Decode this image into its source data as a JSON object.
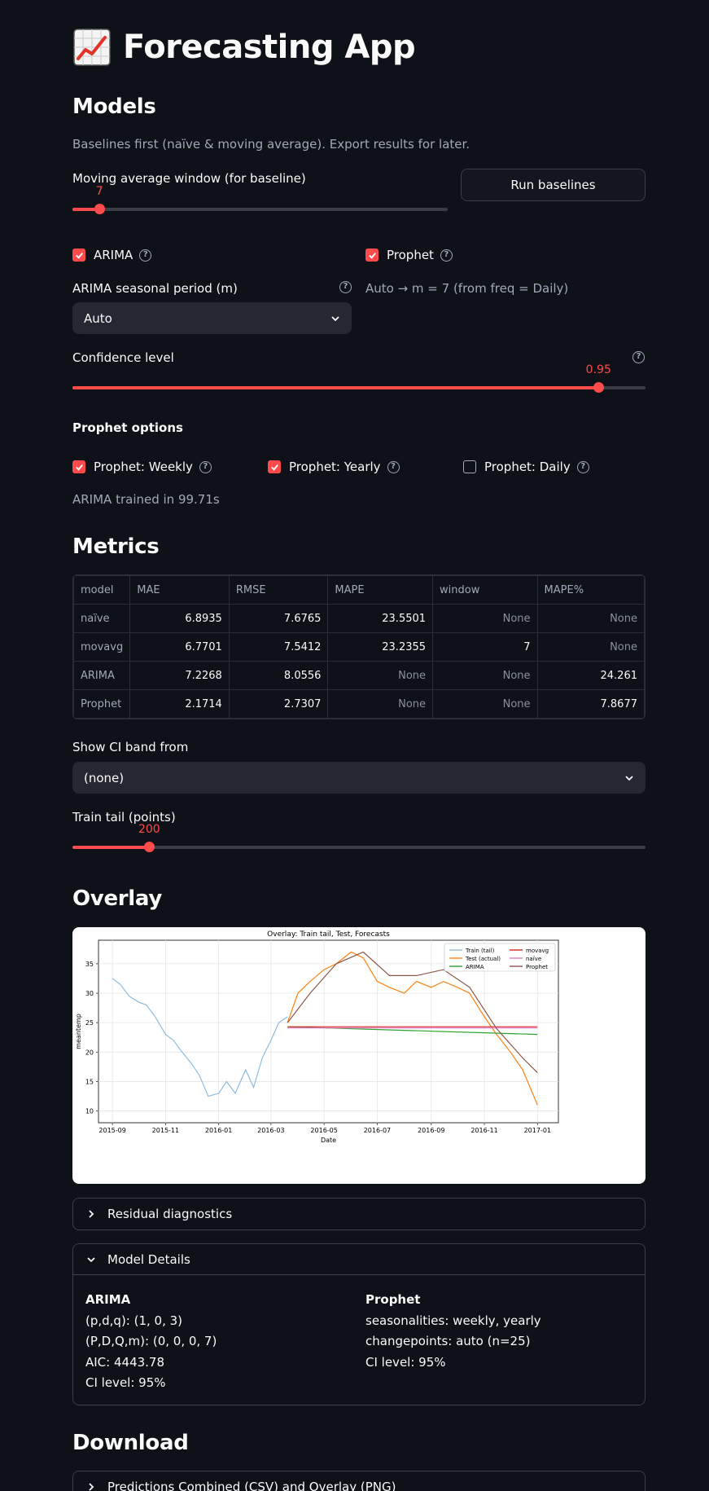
{
  "app": {
    "title": "Forecasting App",
    "title_icon": "chart-increasing-emoji"
  },
  "models": {
    "heading": "Models",
    "caption": "Baselines first (naïve & moving average). Export results for later.",
    "ma_window_label": "Moving average window (for baseline)",
    "ma_window_value": "7",
    "ma_window_fraction": 0.072,
    "run_baselines_label": "Run baselines",
    "arima_label": "ARIMA",
    "arima_checked": true,
    "prophet_label": "Prophet",
    "prophet_checked": true,
    "seasonal_label": "ARIMA seasonal period (m)",
    "seasonal_value": "Auto",
    "auto_note": "Auto → m = 7 (from freq = Daily)",
    "confidence_label": "Confidence level",
    "confidence_value": "0.95",
    "confidence_fraction": 0.918,
    "prophet_options_label": "Prophet options",
    "weekly_label": "Prophet: Weekly",
    "yearly_label": "Prophet: Yearly",
    "daily_label": "Prophet: Daily",
    "arima_trained": "ARIMA trained in 99.71s"
  },
  "metrics": {
    "heading": "Metrics",
    "columns": [
      "model",
      "MAE",
      "RMSE",
      "MAPE",
      "window",
      "MAPE%"
    ],
    "rows": [
      [
        "naïve",
        "6.8935",
        "7.6765",
        "23.5501",
        "None",
        "None"
      ],
      [
        "movavg",
        "6.7701",
        "7.5412",
        "23.2355",
        "7",
        "None"
      ],
      [
        "ARIMA",
        "7.2268",
        "8.0556",
        "None",
        "None",
        "24.261"
      ],
      [
        "Prophet",
        "2.1714",
        "2.7307",
        "None",
        "None",
        "7.8677"
      ]
    ],
    "ci_label": "Show CI band from",
    "ci_value": "(none)",
    "tail_label": "Train tail (points)",
    "tail_value": "200",
    "tail_fraction": 0.134
  },
  "overlay": {
    "heading": "Overlay"
  },
  "chart_data": {
    "type": "line",
    "title": "Overlay: Train tail, Test, Forecasts",
    "xlabel": "Date",
    "ylabel": "meantemp",
    "x_ticks": [
      "2015-09",
      "2015-11",
      "2016-01",
      "2016-03",
      "2016-05",
      "2016-07",
      "2016-09",
      "2016-11",
      "2017-01"
    ],
    "y_ticks": [
      "10",
      "15",
      "20",
      "25",
      "30",
      "35"
    ],
    "ylim": [
      8,
      39
    ],
    "xlim": [
      "2015-08-16",
      "2017-01-25"
    ],
    "legend_position": "top-right",
    "grid": true,
    "series": [
      {
        "name": "Train (tail)",
        "color": "#8fbbdf",
        "x": [
          "2015-09-01",
          "2015-09-10",
          "2015-09-20",
          "2015-10-01",
          "2015-10-10",
          "2015-10-20",
          "2015-11-01",
          "2015-11-10",
          "2015-11-20",
          "2015-12-01",
          "2015-12-10",
          "2015-12-20",
          "2016-01-01",
          "2016-01-10",
          "2016-01-20",
          "2016-02-01",
          "2016-02-10",
          "2016-02-20",
          "2016-03-01",
          "2016-03-10",
          "2016-03-20"
        ],
        "values": [
          32.5,
          31.5,
          29.5,
          28.5,
          28,
          26,
          23,
          22,
          20,
          18,
          16,
          12.5,
          13,
          15,
          13,
          17,
          14,
          19,
          22,
          25,
          26
        ]
      },
      {
        "name": "Test (actual)",
        "color": "#ff7f0e",
        "x": [
          "2016-03-20",
          "2016-04-01",
          "2016-04-15",
          "2016-05-01",
          "2016-05-15",
          "2016-06-01",
          "2016-06-15",
          "2016-07-01",
          "2016-07-15",
          "2016-08-01",
          "2016-08-15",
          "2016-09-01",
          "2016-09-15",
          "2016-10-01",
          "2016-10-15",
          "2016-11-01",
          "2016-11-15",
          "2016-12-01",
          "2016-12-15",
          "2017-01-01"
        ],
        "values": [
          25,
          30,
          32,
          34,
          35,
          37,
          36,
          32,
          31,
          30,
          32,
          31,
          32,
          31,
          30,
          26,
          23,
          20,
          17,
          11
        ]
      },
      {
        "name": "ARIMA",
        "color": "#2ca02c",
        "x": [
          "2016-03-20",
          "2017-01-01"
        ],
        "values": [
          24.3,
          23.0
        ]
      },
      {
        "name": "movavg",
        "color": "#d62728",
        "x": [
          "2016-03-20",
          "2017-01-01"
        ],
        "values": [
          24.3,
          24.3
        ]
      },
      {
        "name": "naïve",
        "color": "#e377c2",
        "x": [
          "2016-03-20",
          "2017-01-01"
        ],
        "values": [
          24.1,
          24.1
        ]
      },
      {
        "name": "Prophet",
        "color": "#8c564b",
        "x": [
          "2016-03-20",
          "2016-04-15",
          "2016-05-15",
          "2016-06-15",
          "2016-07-15",
          "2016-08-15",
          "2016-09-15",
          "2016-10-15",
          "2016-11-15",
          "2016-12-15",
          "2017-01-01"
        ],
        "values": [
          25,
          30,
          35,
          37,
          33,
          33,
          34,
          31,
          24,
          19,
          16.5
        ]
      }
    ]
  },
  "residual": {
    "label": "Residual diagnostics"
  },
  "details": {
    "label": "Model Details",
    "arima": {
      "title": "ARIMA",
      "lines": [
        "(p,d,q): (1, 0, 3)",
        "(P,D,Q,m): (0, 0, 0, 7)",
        "AIC: 4443.78",
        "CI level: 95%"
      ]
    },
    "prophet": {
      "title": "Prophet",
      "lines": [
        "seasonalities: weekly, yearly",
        "changepoints: auto (n=25)",
        "CI level: 95%"
      ]
    }
  },
  "download": {
    "heading": "Download",
    "expander_label": "Predictions Combined (CSV) and Overlay (PNG)"
  },
  "colors": {
    "accent": "#ff4b4b",
    "background": "#0e1117",
    "widget": "#262730"
  }
}
